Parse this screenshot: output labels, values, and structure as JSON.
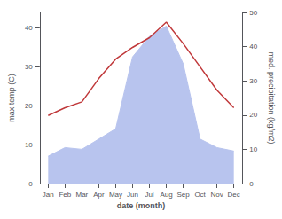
{
  "chart_data": {
    "type": "line",
    "xlabel": "date (month)",
    "ylabel": "max temp (C)",
    "y2label": "med. precipitation (kg/m2)",
    "categories": [
      "Jan",
      "Feb",
      "Mar",
      "Apr",
      "May",
      "Jun",
      "Jul",
      "Aug",
      "Sep",
      "Oct",
      "Nov",
      "Dec"
    ],
    "series": [
      {
        "type": "area",
        "axis": "y2",
        "color": "#b8c4ee",
        "values": [
          8.0,
          10.5,
          10.0,
          13.0,
          16.0,
          37.0,
          43.0,
          46.0,
          35.0,
          13.0,
          10.5,
          9.5
        ]
      },
      {
        "type": "line",
        "color": "#c0393b",
        "values": [
          17.5,
          19.5,
          21.0,
          27.0,
          32.0,
          35.0,
          37.5,
          41.5,
          36.0,
          30.0,
          24.0,
          19.5
        ]
      }
    ],
    "ylim": [
      0,
      44
    ],
    "yticks": [
      0,
      10,
      20,
      30,
      40
    ],
    "y2lim": [
      0,
      50
    ],
    "y2ticks": [
      0,
      10,
      20,
      30,
      40,
      50
    ],
    "grid": false
  }
}
